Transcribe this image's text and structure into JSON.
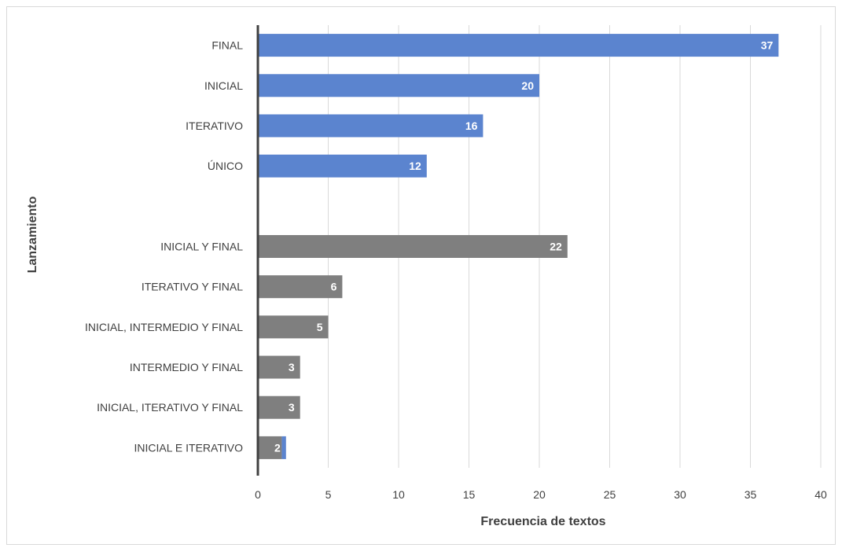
{
  "chart_data": {
    "type": "bar",
    "orientation": "horizontal",
    "xlabel": "Frecuencia de textos",
    "ylabel": "Lanzamiento",
    "xlim": [
      0,
      40
    ],
    "xticks": [
      0,
      5,
      10,
      15,
      20,
      25,
      30,
      35,
      40
    ],
    "grid": "vertical",
    "colors": {
      "group_single": "#5b84cf",
      "group_combined": "#7f7f7f",
      "split_segment": "#5b84cf"
    },
    "groups": [
      {
        "color": "#5b84cf",
        "items": [
          {
            "category": "FINAL",
            "value": 37,
            "label": "37"
          },
          {
            "category": "INICIAL",
            "value": 20,
            "label": "20"
          },
          {
            "category": "ITERATIVO",
            "value": 16,
            "label": "16"
          },
          {
            "category": "ÚNICO",
            "value": 12,
            "label": "12"
          }
        ]
      },
      {
        "color": "#7f7f7f",
        "items": [
          {
            "category": "INICIAL Y FINAL",
            "value": 22,
            "label": "22"
          },
          {
            "category": "ITERATIVO Y FINAL",
            "value": 6,
            "label": "6"
          },
          {
            "category": "INICIAL, INTERMEDIO Y FINAL",
            "value": 5,
            "label": "5"
          },
          {
            "category": "INTERMEDIO Y FINAL",
            "value": 3,
            "label": "3"
          },
          {
            "category": "INICIAL, ITERATIVO Y FINAL",
            "value": 3,
            "label": "3"
          },
          {
            "category": "INICIAL E ITERATIVO",
            "value": 2,
            "label": "2",
            "split_color": "#5b84cf"
          }
        ]
      }
    ]
  }
}
